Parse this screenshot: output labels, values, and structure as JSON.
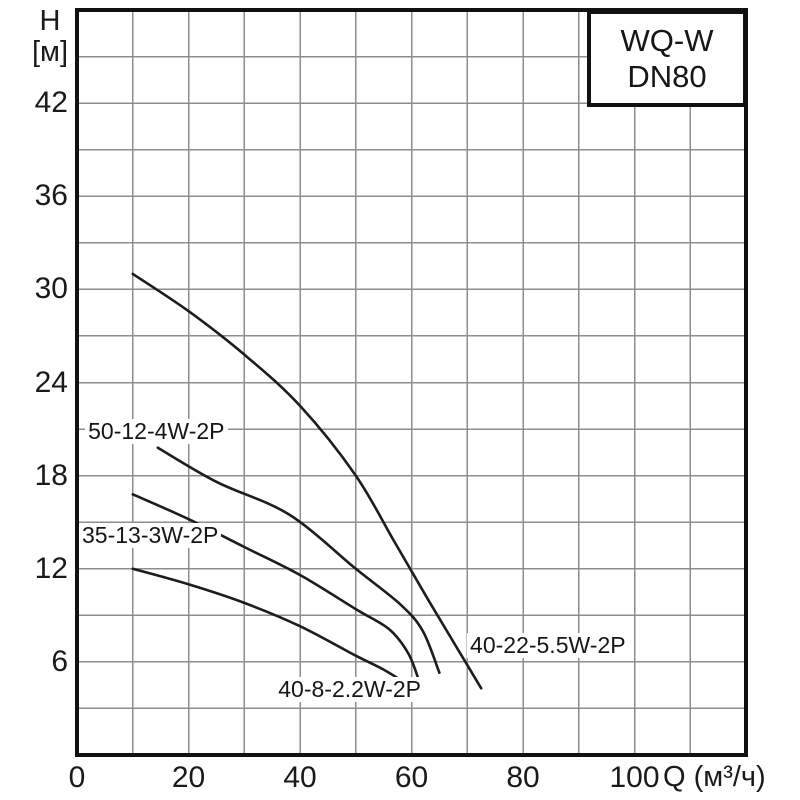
{
  "page": {
    "background": "#ffffff"
  },
  "title_box": {
    "line1": "WQ-W",
    "line2": "DN80"
  },
  "y_axis_title": {
    "line1": "H",
    "line2": "[м]"
  },
  "x_axis_unit": "Q (м³/ч)",
  "chart_data": {
    "type": "line",
    "title": "WQ-W DN80 pump performance curves (H vs Q)",
    "xlabel": "Q (м³/ч)",
    "ylabel": "H [м]",
    "xlim": [
      0,
      120
    ],
    "ylim": [
      0,
      48
    ],
    "x_grid_step": 10,
    "y_grid_step": 3,
    "x_ticks": [
      0,
      20,
      40,
      60,
      80,
      100
    ],
    "y_ticks": [
      6,
      12,
      18,
      24,
      30,
      36,
      42
    ],
    "grid": true,
    "legend_position": "top-right",
    "legend_text": "WQ-W DN80",
    "series": [
      {
        "name": "40-22-5.5W-2P",
        "points": [
          [
            10,
            31
          ],
          [
            20,
            28.6
          ],
          [
            30,
            25.8
          ],
          [
            40,
            22.5
          ],
          [
            50,
            18
          ],
          [
            57,
            13.7
          ],
          [
            63,
            10
          ],
          [
            68,
            7
          ],
          [
            72.5,
            4.3
          ]
        ],
        "label_pos": {
          "q": 70.5,
          "h": 7.0
        }
      },
      {
        "name": "50-12-4W-2P",
        "points": [
          [
            14.5,
            19.8
          ],
          [
            25,
            17.6
          ],
          [
            38,
            15.5
          ],
          [
            50,
            12
          ],
          [
            58,
            9.7
          ],
          [
            62,
            8
          ],
          [
            65,
            5.3
          ]
        ],
        "label_pos": {
          "q": 2.0,
          "h": 20.8
        }
      },
      {
        "name": "35-13-3W-2P",
        "points": [
          [
            10,
            16.8
          ],
          [
            20,
            15.2
          ],
          [
            30,
            13.4
          ],
          [
            40,
            11.6
          ],
          [
            50,
            9.4
          ],
          [
            56,
            8.1
          ],
          [
            59.5,
            6.5
          ],
          [
            61.5,
            4.6
          ]
        ],
        "label_pos": {
          "q": 0.9,
          "h": 14.1
        }
      },
      {
        "name": "40-8-2.2W-2P",
        "points": [
          [
            10,
            12
          ],
          [
            20,
            11
          ],
          [
            30,
            9.8
          ],
          [
            40,
            8.3
          ],
          [
            50,
            6.4
          ],
          [
            55,
            5.5
          ],
          [
            60,
            4.4
          ]
        ],
        "label_pos": {
          "q": 36.1,
          "h": 4.2
        }
      }
    ],
    "colors": {
      "curve": "#1d1d1d",
      "grid": "#8e8e8e",
      "axis": "#111111",
      "text": "#1a1a1a"
    }
  }
}
